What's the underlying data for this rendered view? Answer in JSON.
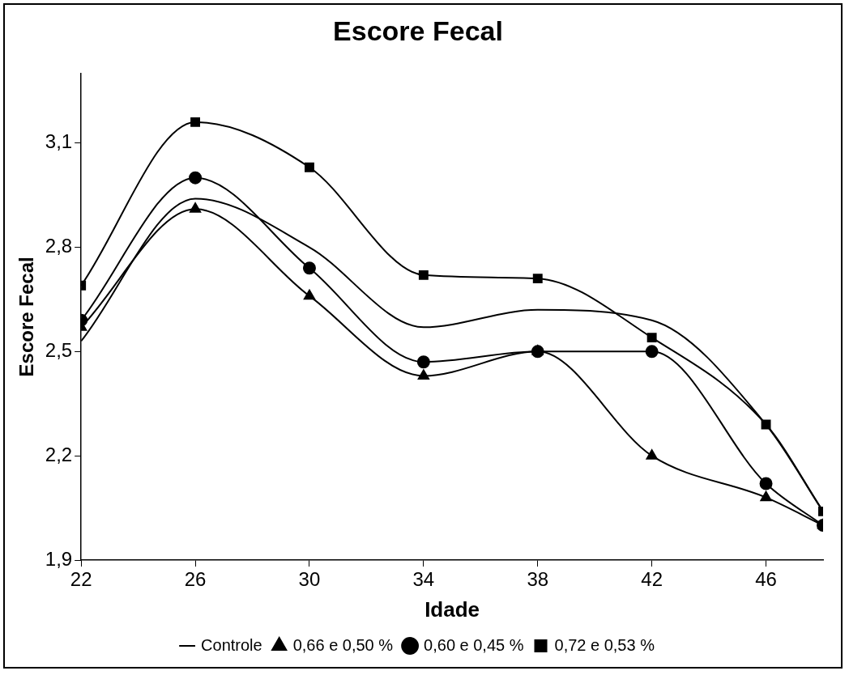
{
  "chart_data": {
    "type": "line",
    "title": "Escore Fecal",
    "xlabel": "Idade",
    "ylabel": "Escore Fecal",
    "x": [
      22,
      26,
      30,
      34,
      38,
      42,
      46,
      48
    ],
    "xlim": [
      22,
      48
    ],
    "xticks": [
      22,
      26,
      30,
      34,
      38,
      42,
      46
    ],
    "ylim": [
      1.9,
      3.3
    ],
    "yticks": [
      {
        "value": 1.9,
        "label": "1,9"
      },
      {
        "value": 2.2,
        "label": "2,2"
      },
      {
        "value": 2.5,
        "label": "2,5"
      },
      {
        "value": 2.8,
        "label": "2,8"
      },
      {
        "value": 3.1,
        "label": "3,1"
      }
    ],
    "grid": false,
    "legend": "bottom",
    "line_style": "solid",
    "series": [
      {
        "name": "Controle",
        "color": "#000000",
        "marker": "none",
        "values": [
          2.53,
          2.94,
          2.8,
          2.57,
          2.62,
          2.59,
          2.29,
          2.04
        ]
      },
      {
        "name": "0,66 e 0,50 %",
        "color": "#000000",
        "marker": "triangle",
        "values": [
          2.57,
          2.91,
          2.66,
          2.43,
          2.5,
          2.2,
          2.08,
          2.0
        ]
      },
      {
        "name": "0,60 e 0,45 %",
        "color": "#000000",
        "marker": "circle",
        "values": [
          2.59,
          3.0,
          2.74,
          2.47,
          2.5,
          2.5,
          2.12,
          2.0
        ]
      },
      {
        "name": "0,72 e 0,53 %",
        "color": "#000000",
        "marker": "square",
        "values": [
          2.69,
          3.16,
          3.03,
          2.72,
          2.71,
          2.54,
          2.29,
          2.04
        ]
      }
    ]
  }
}
